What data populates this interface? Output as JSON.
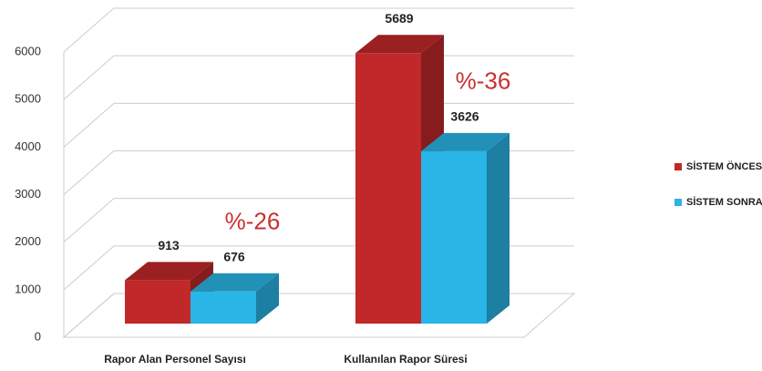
{
  "chart_data": {
    "type": "bar3d",
    "categories": [
      "Rapor Alan Personel Sayısı",
      "Kullanılan Rapor Süresi"
    ],
    "series": [
      {
        "name": "SİSTEM ÖNCESİ",
        "color": "#c0282a",
        "values": [
          913,
          5689
        ]
      },
      {
        "name": "SİSTEM SONRASI",
        "color": "#29b5e6",
        "values": [
          676,
          3626
        ]
      }
    ],
    "annotations": [
      "%-26",
      "%-36"
    ],
    "ylim": [
      0,
      6000
    ],
    "yticks": [
      0,
      1000,
      2000,
      3000,
      4000,
      5000,
      6000
    ],
    "grid": true,
    "legend": "right"
  }
}
